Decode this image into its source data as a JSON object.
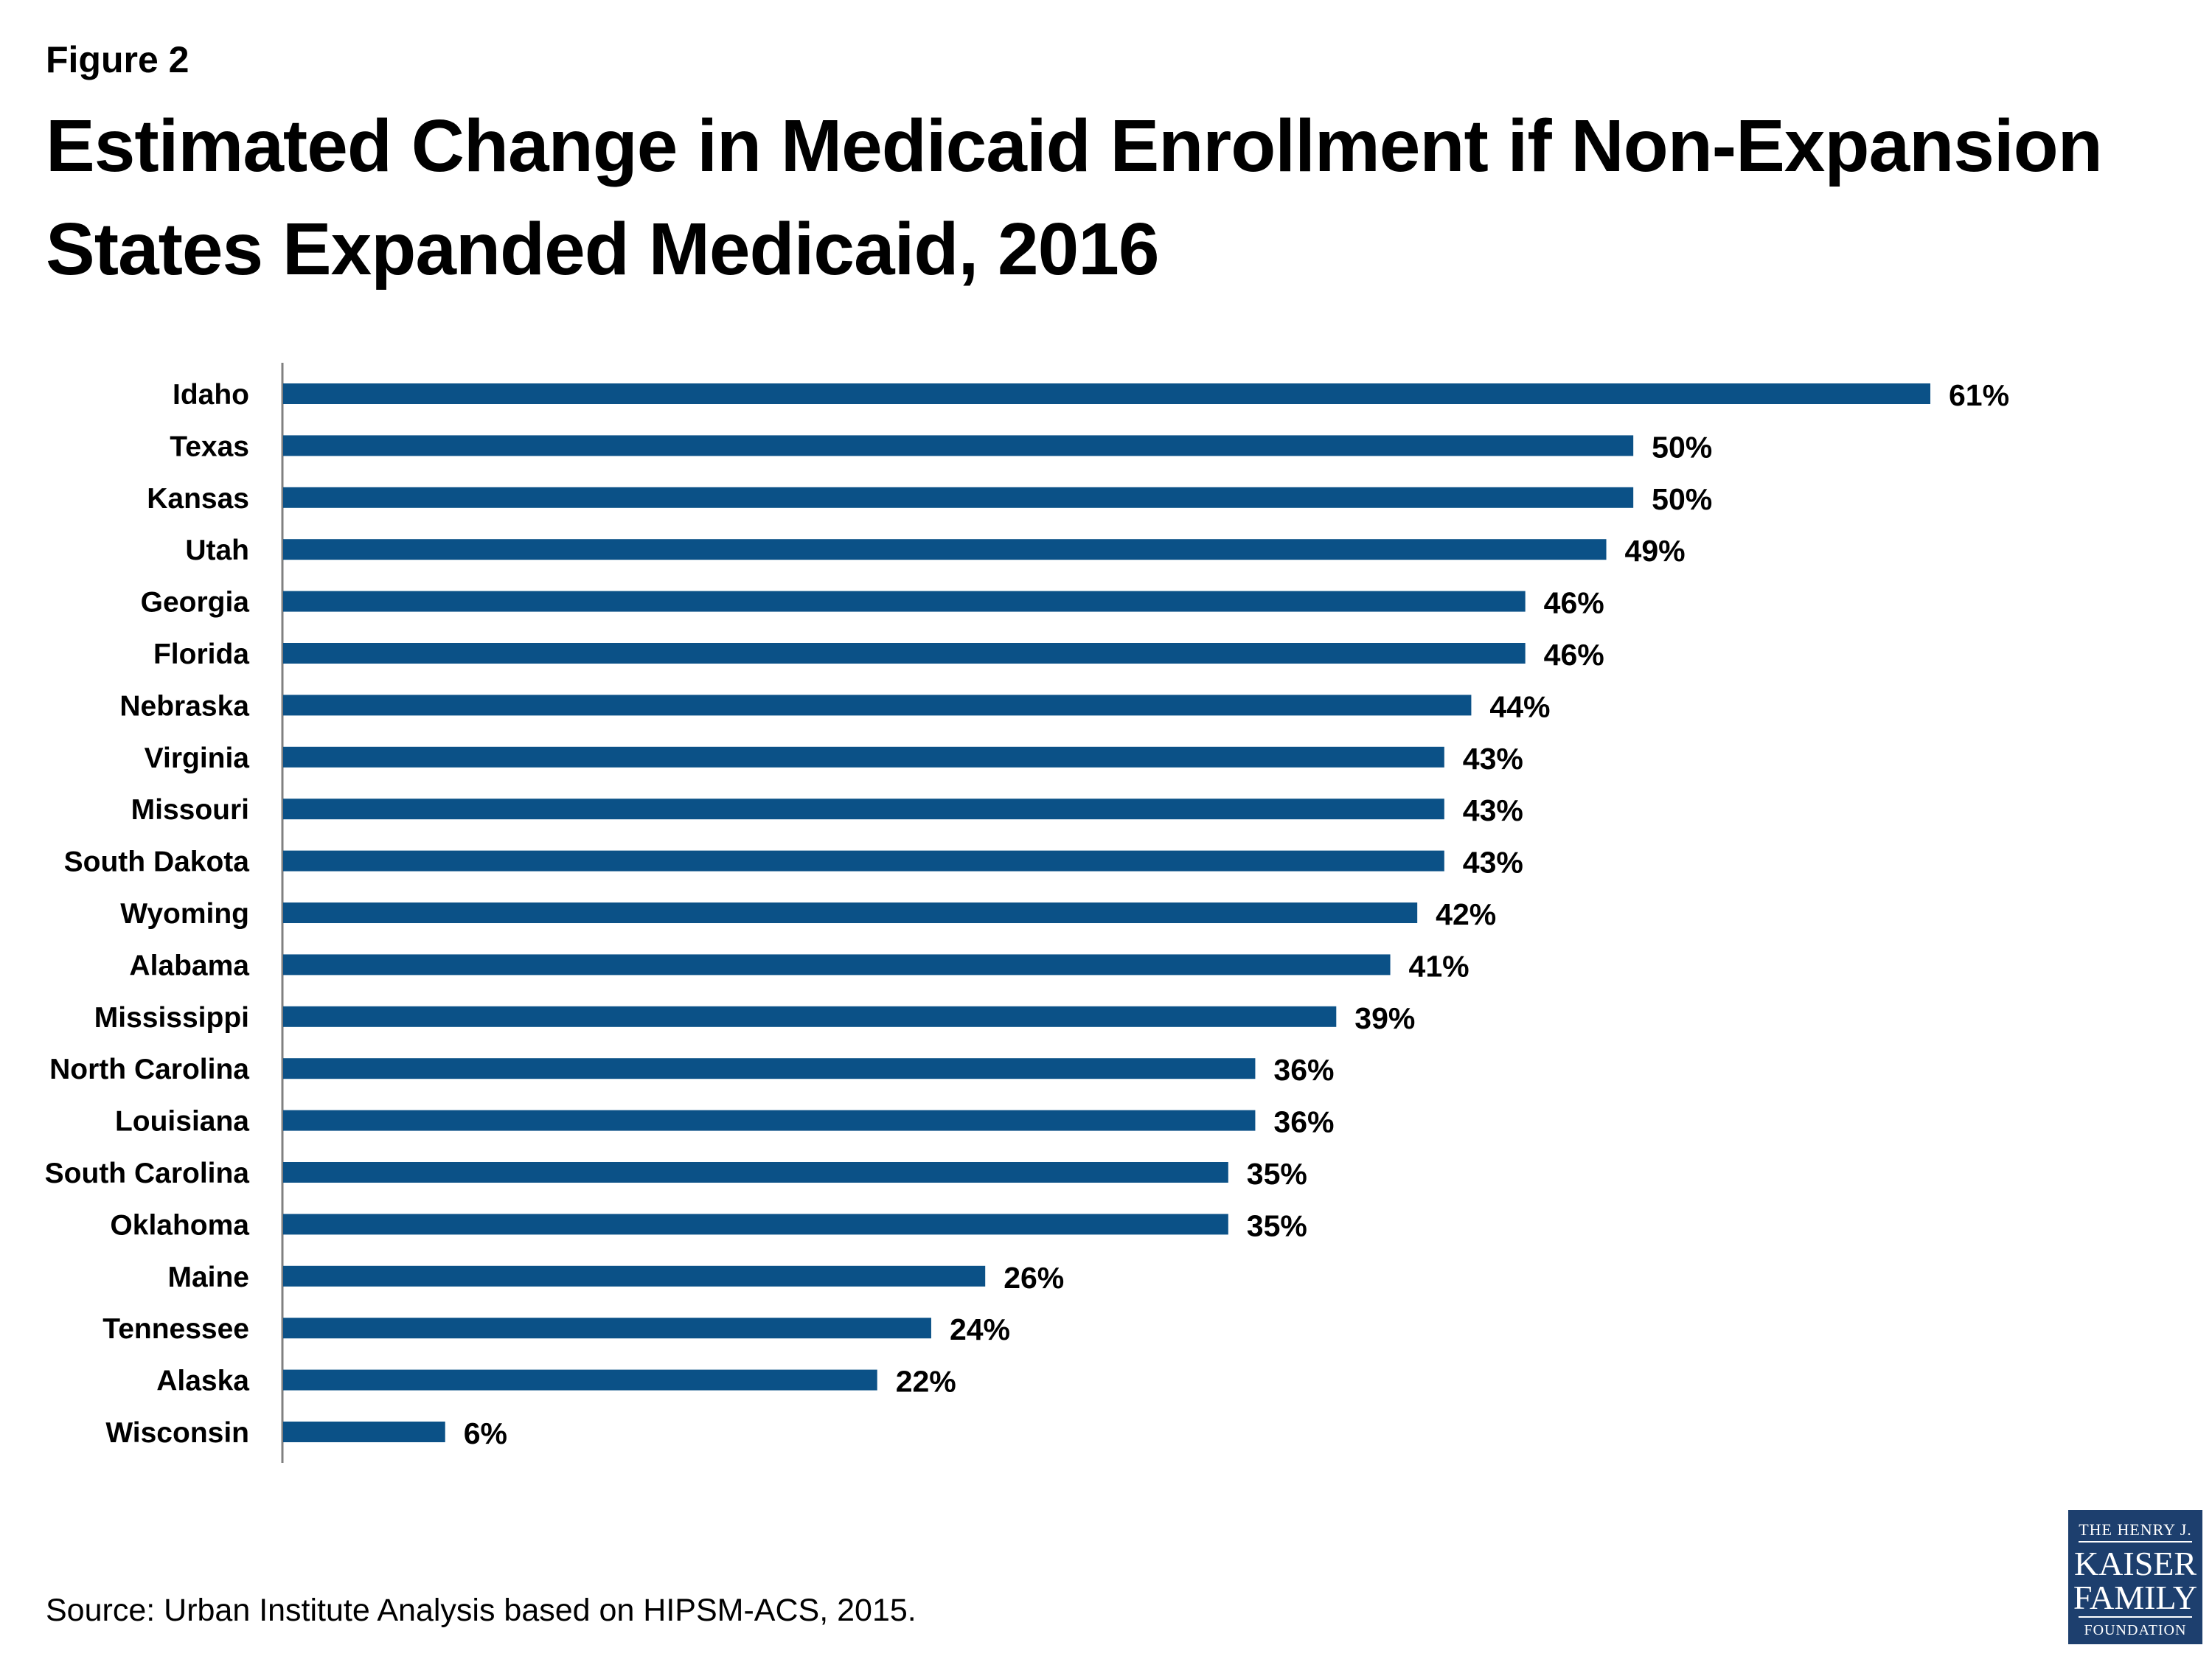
{
  "figure_label": "Figure 2",
  "title": "Estimated Change in Medicaid Enrollment if Non-Expansion States Expanded Medicaid, 2016",
  "source": "Source: Urban Institute Analysis based on HIPSM-ACS, 2015.",
  "logo": {
    "line1": "THE HENRY J.",
    "line2": "KAISER",
    "line3": "FAMILY",
    "line4": "FOUNDATION"
  },
  "colors": {
    "bar": "#0b5187",
    "axis": "#808080"
  },
  "chart_data": {
    "type": "bar",
    "orientation": "horizontal",
    "title": "Estimated Change in Medicaid Enrollment if Non-Expansion States Expanded Medicaid, 2016",
    "xlabel": "",
    "ylabel": "",
    "value_suffix": "%",
    "xlim": [
      0,
      61
    ],
    "categories": [
      "Idaho",
      "Texas",
      "Kansas",
      "Utah",
      "Georgia",
      "Florida",
      "Nebraska",
      "Virginia",
      "Missouri",
      "South Dakota",
      "Wyoming",
      "Alabama",
      "Mississippi",
      "North Carolina",
      "Louisiana",
      "South Carolina",
      "Oklahoma",
      "Maine",
      "Tennessee",
      "Alaska",
      "Wisconsin"
    ],
    "values": [
      61,
      50,
      50,
      49,
      46,
      46,
      44,
      43,
      43,
      43,
      42,
      41,
      39,
      36,
      36,
      35,
      35,
      26,
      24,
      22,
      6
    ],
    "labels": [
      "61%",
      "50%",
      "50%",
      "49%",
      "46%",
      "46%",
      "44%",
      "43%",
      "43%",
      "43%",
      "42%",
      "41%",
      "39%",
      "36%",
      "36%",
      "35%",
      "35%",
      "26%",
      "24%",
      "22%",
      "6%"
    ]
  }
}
